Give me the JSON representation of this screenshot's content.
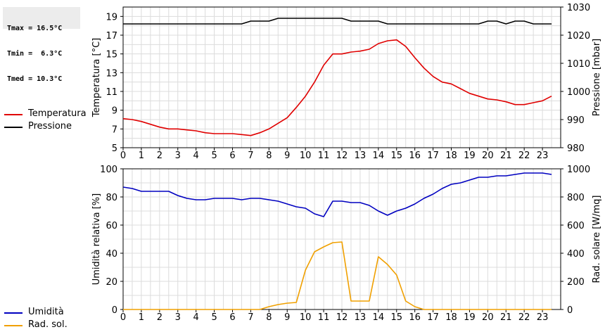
{
  "stats": {
    "tmax": "Tmax = 16.5°C",
    "tmin": "Tmin =  6.3°C",
    "tmed": "Tmed = 10.3°C"
  },
  "legend_top": [
    {
      "label": "Temperatura",
      "color": "#e00000"
    },
    {
      "label": "Pressione",
      "color": "#000000"
    }
  ],
  "legend_bottom": [
    {
      "label": "Umidità",
      "color": "#0000c0"
    },
    {
      "label": "Rad. sol.",
      "color": "#f0a000"
    }
  ],
  "chart_data": [
    {
      "type": "line",
      "x_ticks": [
        "0",
        "1",
        "2",
        "3",
        "4",
        "5",
        "6",
        "7",
        "8",
        "9",
        "10",
        "11",
        "12",
        "13",
        "14",
        "15",
        "16",
        "17",
        "18",
        "19",
        "20",
        "21",
        "22",
        "23"
      ],
      "xlim": [
        0,
        24
      ],
      "ylabel": "Temperatura [°C]",
      "ylim": [
        5,
        20
      ],
      "y_ticks": [
        "5",
        "7",
        "9",
        "11",
        "13",
        "15",
        "17",
        "19"
      ],
      "y2label": "Pressione [mbar]",
      "y2lim": [
        980,
        1030
      ],
      "y2_ticks": [
        "980",
        "990",
        "1000",
        "1010",
        "1020",
        "1030"
      ],
      "grid": true,
      "series": [
        {
          "name": "Temperatura",
          "axis": "left",
          "color": "#e00000",
          "x": [
            0,
            0.5,
            1,
            1.5,
            2,
            2.5,
            3,
            3.5,
            4,
            4.5,
            5,
            5.5,
            6,
            6.5,
            7,
            7.5,
            8,
            8.5,
            9,
            9.5,
            10,
            10.5,
            11,
            11.5,
            12,
            12.5,
            13,
            13.5,
            14,
            14.5,
            15,
            15.5,
            16,
            16.5,
            17,
            17.5,
            18,
            18.5,
            19,
            19.5,
            20,
            20.5,
            21,
            21.5,
            22,
            22.5,
            23,
            23.5
          ],
          "values": [
            8.1,
            8.0,
            7.8,
            7.5,
            7.2,
            7.0,
            7.0,
            6.9,
            6.8,
            6.6,
            6.5,
            6.5,
            6.5,
            6.4,
            6.3,
            6.6,
            7.0,
            7.6,
            8.2,
            9.3,
            10.5,
            12.0,
            13.8,
            15.0,
            15.0,
            15.2,
            15.3,
            15.5,
            16.1,
            16.4,
            16.5,
            15.8,
            14.6,
            13.5,
            12.6,
            12.0,
            11.8,
            11.3,
            10.8,
            10.5,
            10.2,
            10.1,
            9.9,
            9.6,
            9.6,
            9.8,
            10.0,
            10.5
          ]
        },
        {
          "name": "Pressione",
          "axis": "right",
          "color": "#000000",
          "x": [
            0,
            6.5,
            7,
            8,
            8.5,
            12,
            12.5,
            14,
            14.5,
            19.5,
            20,
            20.5,
            21,
            21.5,
            22,
            22.5,
            23.5
          ],
          "values": [
            1024,
            1024,
            1025,
            1025,
            1026,
            1026,
            1025,
            1025,
            1024,
            1024,
            1025,
            1025,
            1024,
            1025,
            1025,
            1024,
            1024
          ]
        }
      ]
    },
    {
      "type": "line",
      "x_ticks": [
        "0",
        "1",
        "2",
        "3",
        "4",
        "5",
        "6",
        "7",
        "8",
        "9",
        "10",
        "11",
        "12",
        "13",
        "14",
        "15",
        "16",
        "17",
        "18",
        "19",
        "20",
        "21",
        "22",
        "23"
      ],
      "xlim": [
        0,
        24
      ],
      "ylabel": "Umidità relativa [%]",
      "ylim": [
        0,
        100
      ],
      "y_ticks": [
        "0",
        "20",
        "40",
        "60",
        "80",
        "100"
      ],
      "y2label": "Rad. solare [W/mq]",
      "y2lim": [
        0,
        1000
      ],
      "y2_ticks": [
        "0",
        "200",
        "400",
        "600",
        "800",
        "1000"
      ],
      "grid": true,
      "series": [
        {
          "name": "Umidità",
          "axis": "left",
          "color": "#0000c0",
          "x": [
            0,
            0.5,
            1,
            1.5,
            2,
            2.5,
            3,
            3.5,
            4,
            4.5,
            5,
            5.5,
            6,
            6.5,
            7,
            7.5,
            8,
            8.5,
            9,
            9.5,
            10,
            10.5,
            11,
            11.5,
            12,
            12.5,
            13,
            13.5,
            14,
            14.5,
            15,
            15.5,
            16,
            16.5,
            17,
            17.5,
            18,
            18.5,
            19,
            19.5,
            20,
            20.5,
            21,
            21.5,
            22,
            22.5,
            23,
            23.5
          ],
          "values": [
            87,
            86,
            84,
            84,
            84,
            84,
            81,
            79,
            78,
            78,
            79,
            79,
            79,
            78,
            79,
            79,
            78,
            77,
            75,
            73,
            72,
            68,
            66,
            77,
            77,
            76,
            76,
            74,
            70,
            67,
            70,
            72,
            75,
            79,
            82,
            86,
            89,
            90,
            92,
            94,
            94,
            95,
            95,
            96,
            97,
            97,
            97,
            96
          ]
        },
        {
          "name": "Rad. sol.",
          "axis": "right",
          "color": "#f0a000",
          "x": [
            0,
            7.5,
            8,
            8.5,
            9,
            9.5,
            10,
            10.5,
            11,
            11.5,
            12,
            12.5,
            13,
            13.5,
            14,
            14.5,
            15,
            15.5,
            16,
            16.5,
            23.5
          ],
          "values": [
            0,
            0,
            20,
            35,
            45,
            50,
            280,
            410,
            445,
            475,
            480,
            60,
            60,
            60,
            375,
            320,
            245,
            60,
            20,
            0,
            0
          ]
        }
      ]
    }
  ]
}
